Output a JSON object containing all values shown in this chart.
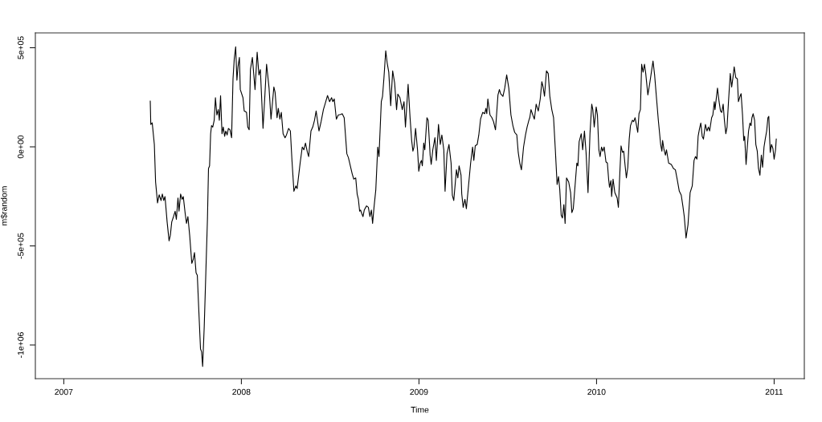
{
  "chart_data": {
    "type": "line",
    "xlabel": "Time",
    "ylabel": "m$random",
    "x": [
      2007.487,
      2007.49,
      2007.498,
      2007.51,
      2007.517,
      2007.528,
      2007.537,
      2007.548,
      2007.555,
      2007.563,
      2007.57,
      2007.582,
      2007.593,
      2007.6,
      2007.608,
      2007.618,
      2007.627,
      2007.634,
      2007.643,
      2007.649,
      2007.658,
      2007.666,
      2007.673,
      2007.684,
      2007.691,
      2007.699,
      2007.709,
      2007.721,
      2007.729,
      2007.736,
      2007.745,
      2007.752,
      2007.761,
      2007.77,
      2007.776,
      2007.782,
      2007.791,
      2007.8,
      2007.809,
      2007.815,
      2007.821,
      2007.827,
      2007.832,
      2007.839,
      2007.847,
      2007.854,
      2007.862,
      2007.87,
      2007.876,
      2007.883,
      2007.891,
      2007.898,
      2007.906,
      2007.912,
      2007.92,
      2007.927,
      2007.936,
      2007.945,
      2007.953,
      2007.96,
      2007.968,
      2007.975,
      2007.981,
      2007.989,
      2007.994,
      2008.009,
      2008.016,
      2008.029,
      2008.036,
      2008.044,
      2008.051,
      2008.062,
      2008.077,
      2008.089,
      2008.099,
      2008.107,
      2008.122,
      2008.133,
      2008.142,
      2008.156,
      2008.167,
      2008.183,
      2008.19,
      2008.201,
      2008.208,
      2008.217,
      2008.225,
      2008.235,
      2008.246,
      2008.254,
      2008.266,
      2008.276,
      2008.285,
      2008.296,
      2008.307,
      2008.314,
      2008.331,
      2008.343,
      2008.352,
      2008.361,
      2008.372,
      2008.379,
      2008.392,
      2008.402,
      2008.412,
      2008.421,
      2008.437,
      2008.449,
      2008.462,
      2008.473,
      2008.485,
      2008.497,
      2008.508,
      2008.515,
      2008.523,
      2008.535,
      2008.546,
      2008.558,
      2008.568,
      2008.579,
      2008.594,
      2008.603,
      2008.624,
      2008.633,
      2008.644,
      2008.652,
      2008.659,
      2008.666,
      2008.671,
      2008.679,
      2008.685,
      2008.692,
      2008.705,
      2008.715,
      2008.724,
      2008.732,
      2008.739,
      2008.747,
      2008.757,
      2008.768,
      2008.775,
      2008.788,
      2008.795,
      2008.803,
      2008.813,
      2008.821,
      2008.83,
      2008.841,
      2008.852,
      2008.863,
      2008.874,
      2008.881,
      2008.893,
      2008.906,
      2008.916,
      2008.924,
      2008.939,
      2008.95,
      2008.959,
      2008.966,
      2008.972,
      2008.981,
      2008.992,
      2008.999,
      2009.007,
      2009.014,
      2009.019,
      2009.027,
      2009.033,
      2009.045,
      2009.052,
      2009.063,
      2009.069,
      2009.078,
      2009.09,
      2009.098,
      2009.11,
      2009.12,
      2009.129,
      2009.14,
      2009.147,
      2009.158,
      2009.169,
      2009.181,
      2009.188,
      2009.196,
      2009.211,
      2009.219,
      2009.226,
      2009.237,
      2009.241,
      2009.249,
      2009.259,
      2009.267,
      2009.279,
      2009.291,
      2009.302,
      2009.309,
      2009.317,
      2009.328,
      2009.337,
      2009.347,
      2009.359,
      2009.37,
      2009.377,
      2009.382,
      2009.388,
      2009.4,
      2009.411,
      2009.42,
      2009.431,
      2009.438,
      2009.445,
      2009.453,
      2009.46,
      2009.473,
      2009.483,
      2009.494,
      2009.506,
      2009.518,
      2009.529,
      2009.539,
      2009.551,
      2009.559,
      2009.568,
      2009.577,
      2009.589,
      2009.6,
      2009.609,
      2009.619,
      2009.624,
      2009.631,
      2009.641,
      2009.65,
      2009.66,
      2009.672,
      2009.683,
      2009.692,
      2009.699,
      2009.707,
      2009.718,
      2009.728,
      2009.737,
      2009.748,
      2009.758,
      2009.768,
      2009.778,
      2009.786,
      2009.793,
      2009.801,
      2009.808,
      2009.816,
      2009.823,
      2009.831,
      2009.843,
      2009.854,
      2009.861,
      2009.869,
      2009.876,
      2009.889,
      2009.895,
      2009.902,
      2009.914,
      2009.922,
      2009.932,
      2009.941,
      2009.952,
      2009.963,
      2009.973,
      2009.979,
      2009.987,
      2009.998,
      2010.005,
      2010.013,
      2010.02,
      2010.028,
      2010.035,
      2010.043,
      2010.053,
      2010.061,
      2010.068,
      2010.073,
      2010.081,
      2010.085,
      2010.093,
      2010.103,
      2010.116,
      2010.123,
      2010.131,
      2010.138,
      2010.146,
      2010.153,
      2010.161,
      2010.168,
      2010.176,
      2010.184,
      2010.191,
      2010.202,
      2010.209,
      2010.217,
      2010.224,
      2010.232,
      2010.239,
      2010.247,
      2010.254,
      2010.262,
      2010.27,
      2010.277,
      2010.289,
      2010.3,
      2010.311,
      2010.318,
      2010.327,
      2010.338,
      2010.348,
      2010.361,
      2010.368,
      2010.372,
      2010.38,
      2010.388,
      2010.394,
      2010.406,
      2010.421,
      2010.433,
      2010.444,
      2010.454,
      2010.466,
      2010.477,
      2010.486,
      2010.494,
      2010.504,
      2010.515,
      2010.527,
      2010.539,
      2010.549,
      2010.557,
      2010.565,
      2010.572,
      2010.58,
      2010.587,
      2010.595,
      2010.602,
      2010.613,
      2010.622,
      2010.63,
      2010.637,
      2010.648,
      2010.655,
      2010.663,
      2010.667,
      2010.681,
      2010.69,
      2010.698,
      2010.705,
      2010.713,
      2010.72,
      2010.728,
      2010.735,
      2010.743,
      2010.753,
      2010.761,
      2010.769,
      2010.775,
      2010.784,
      2010.793,
      2010.799,
      2010.808,
      2010.814,
      2010.822,
      2010.829,
      2010.834,
      2010.842,
      2010.849,
      2010.856,
      2010.864,
      2010.87,
      2010.875,
      2010.882,
      2010.89,
      2010.897,
      2010.905,
      2010.912,
      2010.92,
      2010.928,
      2010.935,
      2010.943,
      2010.95,
      2010.958,
      2010.965,
      2010.97,
      2010.978,
      2010.985,
      2010.993,
      2011.0,
      2011.008,
      2011.012
    ],
    "series": [
      {
        "color": "#000000",
        "values": [
          231000,
          113000,
          121000,
          12000,
          -177000,
          -283000,
          -242000,
          -271000,
          -238000,
          -271000,
          -251000,
          -379000,
          -474000,
          -447000,
          -379000,
          -352000,
          -325000,
          -366000,
          -258000,
          -325000,
          -238000,
          -265000,
          -251000,
          -339000,
          -386000,
          -352000,
          -447000,
          -588000,
          -568000,
          -534000,
          -636000,
          -649000,
          -838000,
          -1020000,
          -1034000,
          -1108000,
          -906000,
          -636000,
          -366000,
          -109000,
          -96000,
          66000,
          107000,
          100000,
          134000,
          248000,
          161000,
          188000,
          134000,
          258000,
          66000,
          100000,
          53000,
          80000,
          60000,
          93000,
          86000,
          46000,
          343000,
          444000,
          505000,
          336000,
          404000,
          451000,
          289000,
          248000,
          181000,
          174000,
          100000,
          86000,
          390000,
          451000,
          289000,
          478000,
          363000,
          390000,
          93000,
          268000,
          417000,
          296000,
          140000,
          302000,
          275000,
          147000,
          194000,
          140000,
          174000,
          66000,
          46000,
          60000,
          93000,
          80000,
          -69000,
          -224000,
          -197000,
          -211000,
          -82000,
          -1000,
          -15000,
          19000,
          -28000,
          -49000,
          80000,
          100000,
          134000,
          181000,
          80000,
          127000,
          188000,
          221000,
          259000,
          228000,
          248000,
          228000,
          242000,
          140000,
          161000,
          163000,
          167000,
          147000,
          -35000,
          -55000,
          -136000,
          -163000,
          -157000,
          -238000,
          -265000,
          -325000,
          -319000,
          -339000,
          -352000,
          -319000,
          -298000,
          -305000,
          -352000,
          -319000,
          -386000,
          -305000,
          -217000,
          -1000,
          -49000,
          228000,
          255000,
          349000,
          485000,
          424000,
          377000,
          208000,
          383000,
          323000,
          188000,
          266000,
          248000,
          188000,
          228000,
          100000,
          316000,
          147000,
          32000,
          -22000,
          -1000,
          93000,
          -15000,
          -123000,
          -82000,
          -69000,
          -96000,
          19000,
          -15000,
          147000,
          134000,
          -42000,
          -89000,
          -15000,
          46000,
          -69000,
          113000,
          12000,
          60000,
          -15000,
          -224000,
          -35000,
          12000,
          -82000,
          -244000,
          -271000,
          -116000,
          -157000,
          -96000,
          -143000,
          -238000,
          -305000,
          -265000,
          -312000,
          -197000,
          -82000,
          -1000,
          -69000,
          5000,
          12000,
          60000,
          140000,
          174000,
          167000,
          194000,
          167000,
          242000,
          161000,
          147000,
          127000,
          86000,
          174000,
          262000,
          289000,
          268000,
          255000,
          296000,
          363000,
          296000,
          161000,
          107000,
          73000,
          60000,
          -28000,
          -82000,
          -116000,
          -1000,
          60000,
          100000,
          134000,
          147000,
          188000,
          161000,
          140000,
          215000,
          181000,
          242000,
          329000,
          302000,
          255000,
          383000,
          370000,
          255000,
          188000,
          147000,
          -15000,
          -190000,
          -150000,
          -217000,
          -345000,
          -359000,
          -292000,
          -386000,
          -157000,
          -177000,
          -231000,
          -332000,
          -312000,
          -231000,
          -82000,
          -96000,
          26000,
          66000,
          -15000,
          80000,
          -28000,
          -231000,
          66000,
          215000,
          188000,
          100000,
          201000,
          161000,
          -15000,
          -49000,
          -1000,
          -22000,
          -1000,
          -76000,
          -82000,
          -163000,
          -204000,
          -170000,
          -251000,
          -163000,
          -231000,
          -258000,
          -305000,
          -136000,
          5000,
          -28000,
          -22000,
          -96000,
          -157000,
          -103000,
          39000,
          107000,
          134000,
          127000,
          147000,
          113000,
          73000,
          167000,
          188000,
          417000,
          377000,
          417000,
          370000,
          262000,
          323000,
          390000,
          433000,
          363000,
          242000,
          134000,
          12000,
          -22000,
          32000,
          -15000,
          -42000,
          -15000,
          -82000,
          -89000,
          -109000,
          -116000,
          -163000,
          -224000,
          -244000,
          -298000,
          -352000,
          -460000,
          -393000,
          -231000,
          -197000,
          -69000,
          -49000,
          -62000,
          53000,
          93000,
          120000,
          53000,
          39000,
          113000,
          80000,
          100000,
          80000,
          147000,
          161000,
          228000,
          188000,
          296000,
          228000,
          181000,
          174000,
          215000,
          134000,
          66000,
          100000,
          228000,
          370000,
          302000,
          356000,
          404000,
          349000,
          343000,
          228000,
          255000,
          268000,
          161000,
          32000,
          53000,
          -89000,
          -1000,
          80000,
          120000,
          107000,
          147000,
          167000,
          134000,
          12000,
          -22000,
          -109000,
          -143000,
          -42000,
          -103000,
          -1000,
          39000,
          80000,
          147000,
          154000,
          -28000,
          12000,
          -8000,
          -62000,
          -15000,
          39000
        ]
      }
    ],
    "xlim": [
      2006.84,
      2011.17
    ],
    "ylim": [
      -1170000,
      575000
    ],
    "xticks": [
      2007,
      2008,
      2009,
      2010,
      2011
    ],
    "yticks": [
      {
        "value": -1000000,
        "label": "-1e+06"
      },
      {
        "value": -500000,
        "label": "-5e+05"
      },
      {
        "value": 0,
        "label": "0e+00"
      },
      {
        "value": 500000,
        "label": "5e+05"
      }
    ],
    "grid": false,
    "line_style": "solid",
    "marker": "none"
  }
}
